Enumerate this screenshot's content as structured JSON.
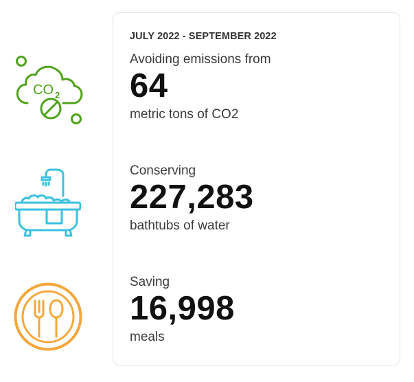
{
  "period": "JULY 2022 - SEPTEMBER 2022",
  "colors": {
    "emissions_icon": "#4fa31a",
    "water_icon": "#3bc0e0",
    "meals_icon": "#f5a73b"
  },
  "icons": {
    "emissions": "co2-cloud-icon",
    "water": "bathtub-icon",
    "meals": "plate-fork-spoon-icon"
  },
  "co2_icon_text": "CO2",
  "stats": [
    {
      "lead": "Avoiding emissions from",
      "value": "64",
      "unit": "metric tons of CO2"
    },
    {
      "lead": "Conserving",
      "value": "227,283",
      "unit": "bathtubs of water"
    },
    {
      "lead": "Saving",
      "value": "16,998",
      "unit": "meals"
    }
  ]
}
